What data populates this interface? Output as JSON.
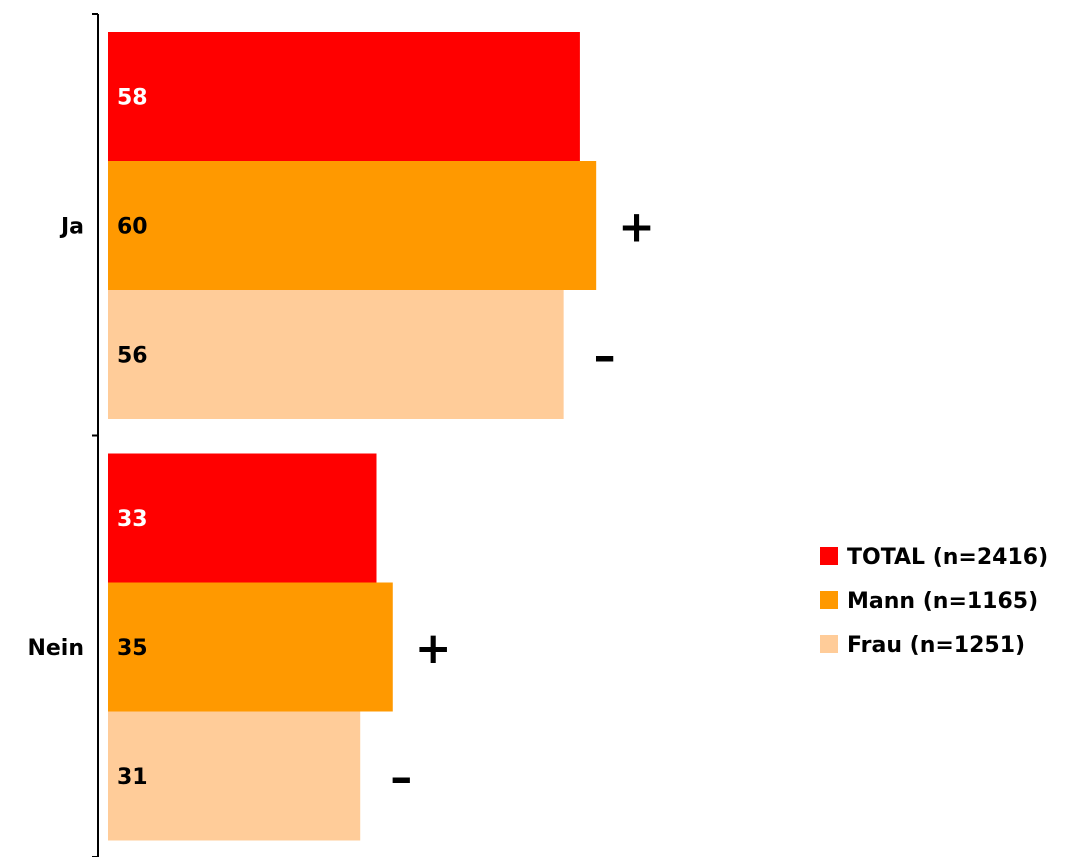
{
  "chart_data": {
    "type": "bar",
    "orientation": "horizontal",
    "categories": [
      "Ja",
      "Nein"
    ],
    "series": [
      {
        "name": "TOTAL (n=2416)",
        "color": "#ff0000",
        "label_color": "#ffffff",
        "values": [
          58,
          33
        ],
        "marks": [
          "",
          ""
        ]
      },
      {
        "name": "Mann (n=1165)",
        "color": "#ff9900",
        "label_color": "#000000",
        "values": [
          60,
          35
        ],
        "marks": [
          "+",
          "+"
        ]
      },
      {
        "name": "Frau (n=1251)",
        "color": "#ffcc99",
        "label_color": "#000000",
        "values": [
          56,
          31
        ],
        "marks": [
          "–",
          "–"
        ]
      }
    ],
    "xlim": [
      0,
      88
    ],
    "grid": false,
    "legend_position": "right"
  }
}
